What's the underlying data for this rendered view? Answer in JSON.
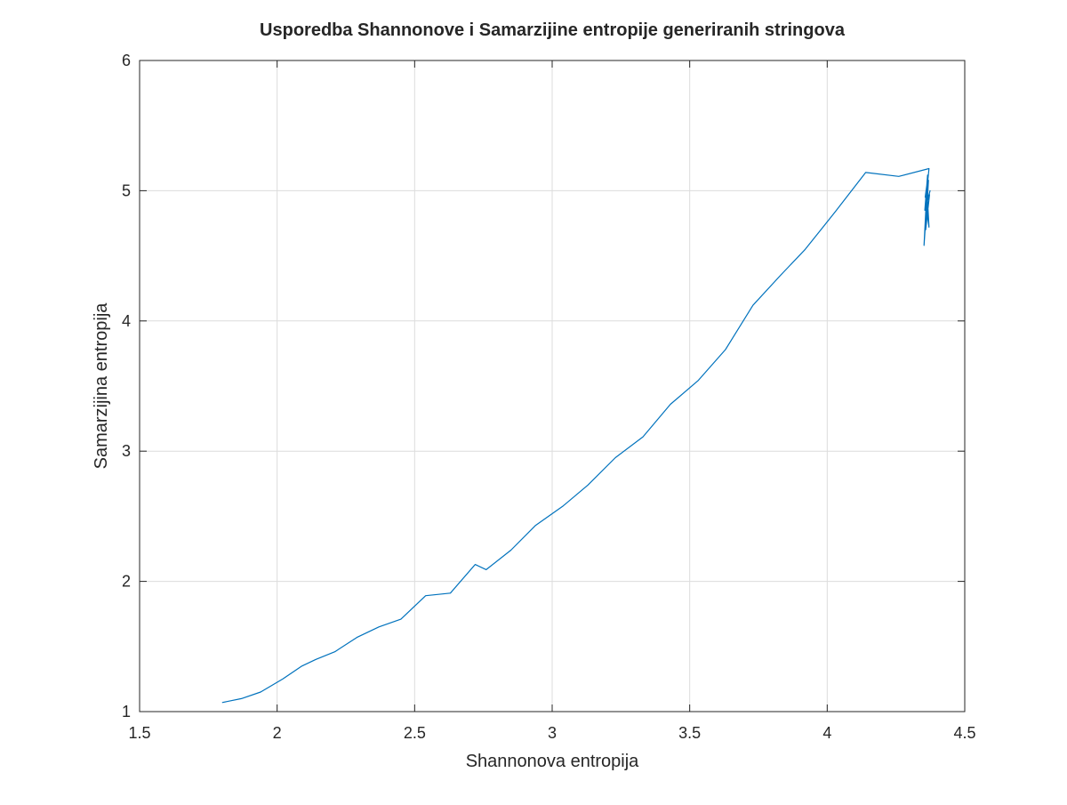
{
  "colors": {
    "background": "#ffffff",
    "axes": "#262626",
    "grid": "#dcdcdc",
    "line": "#0072bd"
  },
  "chart_data": {
    "type": "line",
    "title": "Usporedba Shannonove i Samarzijine entropije generiranih stringova",
    "xlabel": "Shannonova entropija",
    "ylabel": "Samarzijina entropija",
    "xlim": [
      1.5,
      4.5
    ],
    "ylim": [
      1,
      6
    ],
    "xticks": [
      1.5,
      2,
      2.5,
      3,
      3.5,
      4,
      4.5
    ],
    "xtick_labels": [
      "1.5",
      "2",
      "2.5",
      "3",
      "3.5",
      "4",
      "4.5"
    ],
    "yticks": [
      1,
      2,
      3,
      4,
      5,
      6
    ],
    "ytick_labels": [
      "1",
      "2",
      "3",
      "4",
      "5",
      "6"
    ],
    "grid": true,
    "legend": "none",
    "series": [
      {
        "x": [
          1.8,
          1.87,
          1.94,
          2.02,
          2.09,
          2.14,
          2.21,
          2.29,
          2.37,
          2.45,
          2.54,
          2.63,
          2.72,
          2.76,
          2.85,
          2.94,
          3.04,
          3.13,
          3.23,
          3.33,
          3.43,
          3.53,
          3.63,
          3.73,
          3.83,
          3.92,
          4.03,
          4.14,
          4.26,
          4.37,
          4.355,
          4.365,
          4.352,
          4.368,
          4.358,
          4.372,
          4.356,
          4.362,
          4.37,
          4.36,
          4.374,
          4.365
        ],
        "y": [
          1.07,
          1.1,
          1.15,
          1.25,
          1.35,
          1.4,
          1.46,
          1.57,
          1.65,
          1.71,
          1.89,
          1.91,
          2.13,
          2.09,
          2.24,
          2.43,
          2.58,
          2.74,
          2.95,
          3.11,
          3.36,
          3.54,
          3.78,
          4.12,
          4.35,
          4.55,
          4.84,
          5.14,
          5.11,
          5.17,
          4.85,
          5.12,
          4.58,
          5.08,
          4.7,
          4.97,
          4.95,
          5.04,
          4.72,
          4.88,
          5.0,
          4.93
        ]
      }
    ]
  }
}
